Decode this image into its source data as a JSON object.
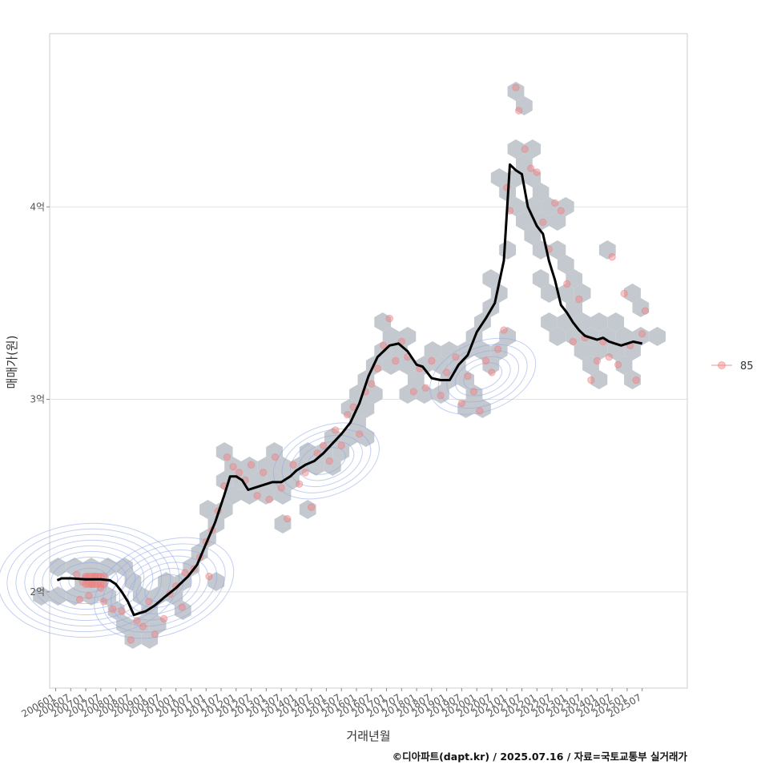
{
  "chart_data": {
    "type": "scatter",
    "title": "",
    "xlabel": "거래년월",
    "ylabel": "매매가(원)",
    "caption": "©디아파트(dapt.kr) / 2025.07.16 / 자료=국토교통부 실거래가",
    "legend": {
      "position": "right",
      "entries": [
        {
          "label": "85",
          "color": "#f08080"
        }
      ]
    },
    "x_range": [
      2005.8,
      2027.0
    ],
    "y_range": [
      1.5,
      4.9
    ],
    "y_unit": "억",
    "y_ticks": [
      {
        "value": 2,
        "label": "2억"
      },
      {
        "value": 3,
        "label": "3억"
      },
      {
        "value": 4,
        "label": "4억"
      }
    ],
    "x_ticks": [
      {
        "value": 2006.0,
        "label": "200601"
      },
      {
        "value": 2006.5,
        "label": "200607"
      },
      {
        "value": 2007.0,
        "label": "200701"
      },
      {
        "value": 2007.5,
        "label": "200707"
      },
      {
        "value": 2008.0,
        "label": "200801"
      },
      {
        "value": 2008.5,
        "label": "200807"
      },
      {
        "value": 2009.0,
        "label": "200901"
      },
      {
        "value": 2009.5,
        "label": "200907"
      },
      {
        "value": 2010.0,
        "label": "201001"
      },
      {
        "value": 2010.5,
        "label": "201007"
      },
      {
        "value": 2011.0,
        "label": "201101"
      },
      {
        "value": 2011.5,
        "label": "201107"
      },
      {
        "value": 2012.0,
        "label": "201201"
      },
      {
        "value": 2012.5,
        "label": "201207"
      },
      {
        "value": 2013.0,
        "label": "201301"
      },
      {
        "value": 2013.5,
        "label": "201307"
      },
      {
        "value": 2014.0,
        "label": "201401"
      },
      {
        "value": 2014.5,
        "label": "201407"
      },
      {
        "value": 2015.0,
        "label": "201501"
      },
      {
        "value": 2015.5,
        "label": "201507"
      },
      {
        "value": 2016.0,
        "label": "201601"
      },
      {
        "value": 2016.5,
        "label": "201607"
      },
      {
        "value": 2017.0,
        "label": "201701"
      },
      {
        "value": 2017.5,
        "label": "201707"
      },
      {
        "value": 2018.0,
        "label": "201801"
      },
      {
        "value": 2018.5,
        "label": "201807"
      },
      {
        "value": 2019.0,
        "label": "201901"
      },
      {
        "value": 2019.5,
        "label": "201907"
      },
      {
        "value": 2020.0,
        "label": "202001"
      },
      {
        "value": 2020.5,
        "label": "202007"
      },
      {
        "value": 2021.0,
        "label": "202101"
      },
      {
        "value": 2021.5,
        "label": "202107"
      },
      {
        "value": 2022.0,
        "label": "202201"
      },
      {
        "value": 2022.5,
        "label": "202207"
      },
      {
        "value": 2023.0,
        "label": "202301"
      },
      {
        "value": 2023.5,
        "label": "202307"
      },
      {
        "value": 2024.0,
        "label": "202401"
      },
      {
        "value": 2024.5,
        "label": "202407"
      },
      {
        "value": 2025.0,
        "label": "202501"
      },
      {
        "value": 2025.5,
        "label": "202507"
      }
    ],
    "trend_line": {
      "name": "moving average",
      "color": "#000000",
      "x": [
        2006.05,
        2006.2,
        2006.5,
        2007.0,
        2007.5,
        2007.8,
        2008.0,
        2008.2,
        2008.4,
        2008.6,
        2009.0,
        2009.3,
        2009.6,
        2010.0,
        2010.4,
        2010.7,
        2011.0,
        2011.3,
        2011.6,
        2011.8,
        2012.0,
        2012.2,
        2012.4,
        2012.6,
        2012.8,
        2013.0,
        2013.2,
        2013.5,
        2013.8,
        2014.0,
        2014.3,
        2014.6,
        2014.9,
        2015.2,
        2015.5,
        2015.8,
        2016.1,
        2016.4,
        2016.7,
        2016.9,
        2017.1,
        2017.4,
        2017.7,
        2018.0,
        2018.2,
        2018.5,
        2018.8,
        2019.1,
        2019.4,
        2019.7,
        2020.0,
        2020.3,
        2020.6,
        2020.9,
        2021.1,
        2021.3,
        2021.5,
        2021.7,
        2021.85,
        2022.0,
        2022.2,
        2022.4,
        2022.6,
        2022.8,
        2023.0,
        2023.2,
        2023.4,
        2023.6,
        2023.8,
        2024.0,
        2024.2,
        2024.4,
        2024.6,
        2024.8,
        2025.0,
        2025.2,
        2025.5
      ],
      "y": [
        2.06,
        2.07,
        2.07,
        2.065,
        2.065,
        2.06,
        2.04,
        2.0,
        1.95,
        1.88,
        1.9,
        1.93,
        1.97,
        2.02,
        2.08,
        2.14,
        2.25,
        2.36,
        2.5,
        2.6,
        2.6,
        2.58,
        2.53,
        2.54,
        2.55,
        2.56,
        2.57,
        2.57,
        2.6,
        2.63,
        2.66,
        2.68,
        2.72,
        2.77,
        2.82,
        2.88,
        2.98,
        3.12,
        3.22,
        3.25,
        3.28,
        3.29,
        3.25,
        3.18,
        3.17,
        3.11,
        3.1,
        3.1,
        3.18,
        3.23,
        3.35,
        3.42,
        3.5,
        3.72,
        4.22,
        4.19,
        4.17,
        4.0,
        3.95,
        3.9,
        3.86,
        3.72,
        3.62,
        3.49,
        3.45,
        3.4,
        3.36,
        3.33,
        3.32,
        3.31,
        3.32,
        3.3,
        3.29,
        3.28,
        3.29,
        3.3,
        3.29
      ]
    },
    "density_centers": [
      {
        "x": 2007.1,
        "y": 2.06
      },
      {
        "x": 2009.6,
        "y": 2.02
      },
      {
        "x": 2015.0,
        "y": 2.68
      },
      {
        "x": 2020.2,
        "y": 3.12
      }
    ],
    "hex_counts_visible": false,
    "scatter_points": [
      [
        2006.7,
        2.09
      ],
      [
        2006.9,
        2.05
      ],
      [
        2007.0,
        2.07
      ],
      [
        2007.2,
        2.04
      ],
      [
        2007.3,
        2.08
      ],
      [
        2007.1,
        1.98
      ],
      [
        2006.8,
        1.96
      ],
      [
        2007.5,
        2.02
      ],
      [
        2007.6,
        1.95
      ],
      [
        2007.9,
        1.91
      ],
      [
        2008.2,
        1.9
      ],
      [
        2008.5,
        1.75
      ],
      [
        2008.7,
        1.85
      ],
      [
        2008.9,
        1.82
      ],
      [
        2009.1,
        1.95
      ],
      [
        2009.3,
        1.78
      ],
      [
        2009.6,
        1.86
      ],
      [
        2009.8,
        1.99
      ],
      [
        2010.0,
        2.03
      ],
      [
        2010.2,
        1.92
      ],
      [
        2010.3,
        2.1
      ],
      [
        2010.6,
        2.12
      ],
      [
        2010.8,
        2.18
      ],
      [
        2011.0,
        2.26
      ],
      [
        2011.1,
        2.08
      ],
      [
        2011.2,
        2.32
      ],
      [
        2011.4,
        2.42
      ],
      [
        2011.6,
        2.55
      ],
      [
        2011.7,
        2.7
      ],
      [
        2011.9,
        2.65
      ],
      [
        2012.1,
        2.62
      ],
      [
        2012.3,
        2.58
      ],
      [
        2012.5,
        2.66
      ],
      [
        2012.7,
        2.5
      ],
      [
        2012.9,
        2.62
      ],
      [
        2013.1,
        2.48
      ],
      [
        2013.3,
        2.7
      ],
      [
        2013.5,
        2.54
      ],
      [
        2013.7,
        2.38
      ],
      [
        2013.9,
        2.66
      ],
      [
        2014.1,
        2.56
      ],
      [
        2014.3,
        2.62
      ],
      [
        2014.5,
        2.44
      ],
      [
        2014.7,
        2.72
      ],
      [
        2014.9,
        2.76
      ],
      [
        2015.1,
        2.68
      ],
      [
        2015.3,
        2.84
      ],
      [
        2015.5,
        2.76
      ],
      [
        2015.7,
        2.92
      ],
      [
        2015.9,
        2.96
      ],
      [
        2016.1,
        2.82
      ],
      [
        2016.3,
        3.04
      ],
      [
        2016.5,
        3.08
      ],
      [
        2016.7,
        3.16
      ],
      [
        2016.9,
        3.28
      ],
      [
        2017.1,
        3.42
      ],
      [
        2017.3,
        3.2
      ],
      [
        2017.5,
        3.3
      ],
      [
        2017.7,
        3.22
      ],
      [
        2017.9,
        3.04
      ],
      [
        2018.1,
        3.16
      ],
      [
        2018.3,
        3.06
      ],
      [
        2018.5,
        3.2
      ],
      [
        2018.8,
        3.02
      ],
      [
        2019.0,
        3.14
      ],
      [
        2019.3,
        3.22
      ],
      [
        2019.5,
        2.98
      ],
      [
        2019.7,
        3.12
      ],
      [
        2019.9,
        3.04
      ],
      [
        2020.1,
        2.94
      ],
      [
        2020.3,
        3.2
      ],
      [
        2020.5,
        3.14
      ],
      [
        2020.7,
        3.26
      ],
      [
        2020.9,
        3.36
      ],
      [
        2021.0,
        4.1
      ],
      [
        2021.1,
        3.98
      ],
      [
        2021.3,
        4.62
      ],
      [
        2021.4,
        4.5
      ],
      [
        2021.6,
        4.3
      ],
      [
        2021.8,
        4.2
      ],
      [
        2022.0,
        4.18
      ],
      [
        2022.2,
        3.92
      ],
      [
        2022.4,
        3.78
      ],
      [
        2022.6,
        4.02
      ],
      [
        2022.8,
        3.98
      ],
      [
        2023.0,
        3.6
      ],
      [
        2023.2,
        3.3
      ],
      [
        2023.4,
        3.52
      ],
      [
        2023.6,
        3.32
      ],
      [
        2023.8,
        3.1
      ],
      [
        2024.0,
        3.2
      ],
      [
        2024.2,
        3.3
      ],
      [
        2024.4,
        3.22
      ],
      [
        2024.5,
        3.74
      ],
      [
        2024.7,
        3.18
      ],
      [
        2024.9,
        3.55
      ],
      [
        2025.1,
        3.28
      ],
      [
        2025.3,
        3.1
      ],
      [
        2025.5,
        3.34
      ],
      [
        2025.6,
        3.46
      ]
    ]
  }
}
